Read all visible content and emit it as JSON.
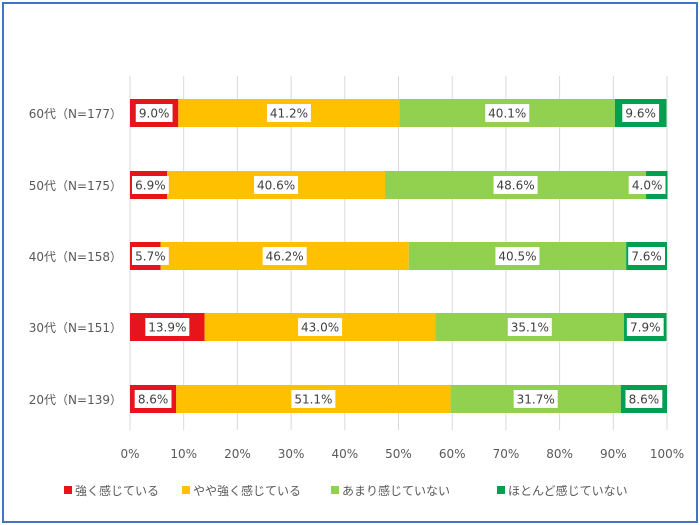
{
  "chart_data": {
    "type": "bar",
    "orientation": "horizontal",
    "stacked": true,
    "percent": true,
    "categories": [
      "60代（N=177）",
      "50代（N=175）",
      "40代（N=158）",
      "30代（N=151）",
      "20代（N=139）"
    ],
    "series": [
      {
        "name": "強く感じている",
        "color": "#e8141c",
        "values": [
          9.0,
          6.9,
          5.7,
          13.9,
          8.6
        ]
      },
      {
        "name": "やや強く感じている",
        "color": "#ffc000",
        "values": [
          41.2,
          40.6,
          46.2,
          43.0,
          51.1
        ]
      },
      {
        "name": "あまり感じていない",
        "color": "#92d050",
        "values": [
          40.1,
          48.6,
          40.5,
          35.1,
          31.7
        ]
      },
      {
        "name": "ほとんど感じていない",
        "color": "#00a050",
        "values": [
          9.6,
          4.0,
          7.6,
          7.9,
          8.6
        ]
      }
    ],
    "data_labels": [
      [
        "9.0%",
        "41.2%",
        "40.1%",
        "9.6%"
      ],
      [
        "6.9%",
        "40.6%",
        "48.6%",
        "4.0%"
      ],
      [
        "5.7%",
        "46.2%",
        "40.5%",
        "7.6%"
      ],
      [
        "13.9%",
        "43.0%",
        "35.1%",
        "7.9%"
      ],
      [
        "8.6%",
        "51.1%",
        "31.7%",
        "8.6%"
      ]
    ],
    "xlim": [
      0,
      100
    ],
    "xticks": [
      "0%",
      "10%",
      "20%",
      "30%",
      "40%",
      "50%",
      "60%",
      "70%",
      "80%",
      "90%",
      "100%"
    ],
    "grid": true,
    "legend_position": "bottom"
  }
}
